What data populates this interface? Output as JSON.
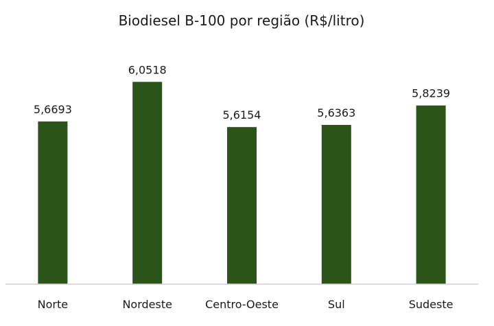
{
  "chart_data": {
    "type": "bar",
    "title": "Biodiesel B-100 por região (R$/litro)",
    "categories": [
      "Norte",
      "Nordeste",
      "Centro-Oeste",
      "Sul",
      "Sudeste"
    ],
    "values": [
      5.6693,
      6.0518,
      5.6154,
      5.6363,
      5.8239
    ],
    "data_labels": [
      "5,6693",
      "6,0518",
      "5,6154",
      "5,6363",
      "5,8239"
    ],
    "xlabel": "",
    "ylabel": "",
    "ylim": [
      4.1,
      6.1
    ],
    "grid": false,
    "legend": "none",
    "bar_color": "#2a5418",
    "axis_color": "#d0d0d0",
    "text_color": "#1a1a1a"
  }
}
